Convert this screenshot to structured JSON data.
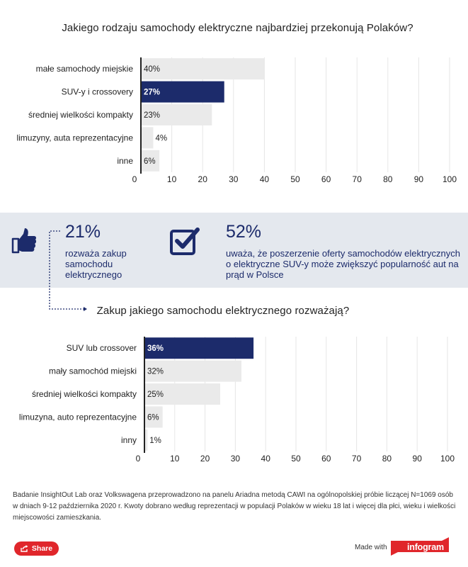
{
  "chart_data": [
    {
      "type": "bar",
      "orientation": "horizontal",
      "title": "Jakiego rodzaju samochody elektryczne najbardziej przekonują Polaków?",
      "categories": [
        "małe samochody miejskie",
        "SUV-y i crossovery",
        "średniej wielkości kompakty",
        "limuzyny, auta reprezentacyjne",
        "inne"
      ],
      "values": [
        40,
        27,
        23,
        4,
        6
      ],
      "value_labels": [
        "40%",
        "27%",
        "23%",
        "4%",
        "6%"
      ],
      "highlight_index": 1,
      "xticks": [
        "0",
        "10",
        "20",
        "30",
        "40",
        "50",
        "60",
        "70",
        "80",
        "90",
        "100"
      ],
      "xlim": [
        0,
        100
      ],
      "grid": true
    },
    {
      "type": "bar",
      "orientation": "horizontal",
      "title": "Zakup jakiego samochodu elektrycznego rozważają?",
      "categories": [
        "SUV lub crossover",
        "mały samochód miejski",
        "średniej wielkości kompakty",
        "limuzyna, auto reprezentacyjne",
        "inny"
      ],
      "values": [
        36,
        32,
        25,
        6,
        1
      ],
      "value_labels": [
        "36%",
        "32%",
        "25%",
        "6%",
        "1%"
      ],
      "highlight_index": 0,
      "xticks": [
        "0",
        "10",
        "20",
        "30",
        "40",
        "50",
        "60",
        "70",
        "80",
        "90",
        "100"
      ],
      "xlim": [
        0,
        100
      ],
      "grid": true
    }
  ],
  "stats": [
    {
      "icon": "thumbs-up-icon",
      "percent": "21%",
      "text": "rozważa zakup samochodu elektrycznego"
    },
    {
      "icon": "checkbox-icon",
      "percent": "52%",
      "text": "uważa, że poszerzenie oferty samochodów elektrycznych o elektryczne SUV-y może zwiększyć popularność aut na prąd w Polsce"
    }
  ],
  "note": "Badanie InsightOut Lab oraz Volkswagena przeprowadzono na panelu Ariadna metodą CAWI na ogólnopolskiej próbie liczącej N=1069 osób w dniach 9-12 października 2020 r. Kwoty dobrano według reprezentacji w populacji Polaków w wieku 18 lat i więcej dla płci, wieku i wielkości miejscowości zamieszkania.",
  "footer": {
    "share_label": "Share",
    "made_with": "Made with",
    "brand": "infogram"
  },
  "colors": {
    "highlight_bar": "#1c2b6b",
    "bar": "#eaeaea",
    "band": "#e4e8ee",
    "accent_text": "#1c2b6b",
    "share": "#e0262b"
  }
}
